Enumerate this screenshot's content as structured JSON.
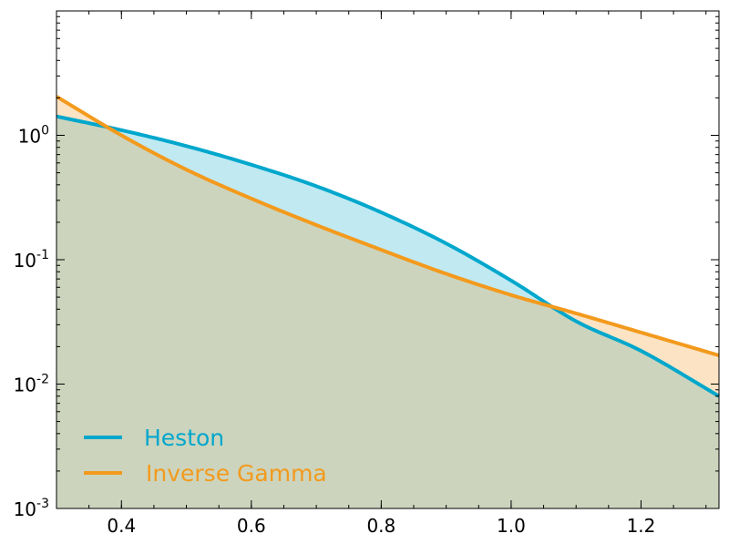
{
  "chart_data": {
    "type": "line",
    "title": "",
    "xlabel": "",
    "ylabel": "",
    "xlim": [
      0.3,
      1.32
    ],
    "ylim": [
      0.001,
      10
    ],
    "y_scale": "log",
    "grid": false,
    "legend_position": "lower-left",
    "x_ticks": [
      {
        "value": 0.4,
        "label": "0.4"
      },
      {
        "value": 0.6,
        "label": "0.6"
      },
      {
        "value": 0.8,
        "label": "0.8"
      },
      {
        "value": 1.0,
        "label": "1.0"
      },
      {
        "value": 1.2,
        "label": "1.2"
      }
    ],
    "y_ticks": [
      {
        "value": 1,
        "base": "10",
        "exp": "0"
      },
      {
        "value": 0.1,
        "base": "10",
        "exp": "-1"
      },
      {
        "value": 0.01,
        "base": "10",
        "exp": "-2"
      },
      {
        "value": 0.001,
        "base": "10",
        "exp": "-3"
      }
    ],
    "series": [
      {
        "name": "Heston",
        "color": "#00a7cc",
        "fill_color": "#c0e9f2",
        "x": [
          0.3,
          0.4,
          0.5,
          0.6,
          0.7,
          0.8,
          0.9,
          1.0,
          1.1,
          1.2,
          1.32
        ],
        "y": [
          1.42,
          1.1,
          0.82,
          0.58,
          0.39,
          0.24,
          0.135,
          0.068,
          0.032,
          0.0185,
          0.008
        ]
      },
      {
        "name": "Inverse Gamma",
        "color": "#f39a1d",
        "fill_color": "#fbe3c4",
        "x": [
          0.3,
          0.4,
          0.5,
          0.6,
          0.7,
          0.8,
          0.9,
          1.0,
          1.1,
          1.2,
          1.32
        ],
        "y": [
          2.05,
          1.0,
          0.53,
          0.31,
          0.19,
          0.12,
          0.077,
          0.052,
          0.037,
          0.026,
          0.017
        ]
      }
    ],
    "overlap_fill_color": "#ccd4bd"
  }
}
